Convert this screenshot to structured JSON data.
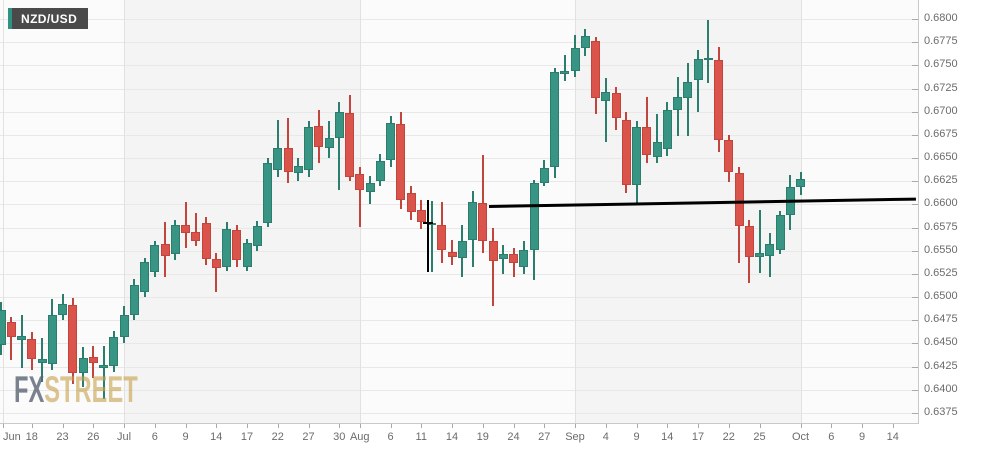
{
  "pair_label": "NZD/USD",
  "watermark": {
    "fx": "FX",
    "street": "STREET"
  },
  "colors": {
    "up": "#389583",
    "up_dark": "#2b7d6d",
    "down": "#db544b",
    "down_dark": "#c2453d",
    "grid": "#e8e8e8",
    "month_grid": "#e1e1e1",
    "band_plain": "#fbfbfb",
    "band_shaded": "#f4f4f4",
    "axis_text": "#6b6b6b",
    "trendline": "#000000",
    "badge_bg": "#4a4a4a",
    "badge_accent": "#2f9383",
    "watermark_fx": "#5b6573",
    "watermark_street": "#c9a250"
  },
  "y_axis": {
    "tick_labels": [
      "0.6800",
      "0.6775",
      "0.6750",
      "0.6725",
      "0.6700",
      "0.6675",
      "0.6650",
      "0.6625",
      "0.6600",
      "0.6575",
      "0.6550",
      "0.6525",
      "0.6500",
      "0.6475",
      "0.6450",
      "0.6425",
      "0.6400",
      "0.6375"
    ]
  },
  "x_axis": {
    "labels": [
      {
        "t": "Jun",
        "i": 0.2,
        "month": true,
        "align": "left"
      },
      {
        "t": "18",
        "i": 3
      },
      {
        "t": "23",
        "i": 6
      },
      {
        "t": "26",
        "i": 9
      },
      {
        "t": "Jul",
        "i": 12,
        "month": true
      },
      {
        "t": "6",
        "i": 15
      },
      {
        "t": "9",
        "i": 18
      },
      {
        "t": "14",
        "i": 21
      },
      {
        "t": "17",
        "i": 24
      },
      {
        "t": "22",
        "i": 27
      },
      {
        "t": "27",
        "i": 30
      },
      {
        "t": "30",
        "i": 33
      },
      {
        "t": "Aug",
        "i": 35,
        "month": true
      },
      {
        "t": "6",
        "i": 38
      },
      {
        "t": "11",
        "i": 41
      },
      {
        "t": "14",
        "i": 44
      },
      {
        "t": "19",
        "i": 47
      },
      {
        "t": "24",
        "i": 50
      },
      {
        "t": "27",
        "i": 53
      },
      {
        "t": "Sep",
        "i": 56,
        "month": true
      },
      {
        "t": "4",
        "i": 59
      },
      {
        "t": "9",
        "i": 62
      },
      {
        "t": "14",
        "i": 65
      },
      {
        "t": "17",
        "i": 68
      },
      {
        "t": "22",
        "i": 71
      },
      {
        "t": "25",
        "i": 74
      },
      {
        "t": "Oct",
        "i": 78,
        "month": true
      },
      {
        "t": "6",
        "i": 81
      },
      {
        "t": "9",
        "i": 84
      },
      {
        "t": "14",
        "i": 87
      }
    ]
  },
  "chart_data": {
    "type": "candlestick",
    "title": "NZD/USD",
    "ylim": [
      0.6375,
      0.68
    ],
    "y_tick_step": 0.0025,
    "grid": true,
    "candles": [
      {
        "d": "Jun 15",
        "o": 0.6448,
        "h": 0.6495,
        "l": 0.6438,
        "c": 0.6486
      },
      {
        "d": "Jun 16",
        "o": 0.6473,
        "h": 0.6479,
        "l": 0.6432,
        "c": 0.6457
      },
      {
        "d": "Jun 17",
        "o": 0.6454,
        "h": 0.6481,
        "l": 0.6424,
        "c": 0.6458
      },
      {
        "d": "Jun 18",
        "o": 0.6455,
        "h": 0.6462,
        "l": 0.6421,
        "c": 0.6433
      },
      {
        "d": "Jun 19",
        "o": 0.6429,
        "h": 0.6456,
        "l": 0.6408,
        "c": 0.6433
      },
      {
        "d": "Jun 22",
        "o": 0.6428,
        "h": 0.6498,
        "l": 0.6421,
        "c": 0.6481
      },
      {
        "d": "Jun 23",
        "o": 0.6481,
        "h": 0.6503,
        "l": 0.6475,
        "c": 0.6493
      },
      {
        "d": "Jun 24",
        "o": 0.6492,
        "h": 0.6499,
        "l": 0.6406,
        "c": 0.6418
      },
      {
        "d": "Jun 25",
        "o": 0.6418,
        "h": 0.6446,
        "l": 0.6403,
        "c": 0.6434
      },
      {
        "d": "Jun 26",
        "o": 0.6435,
        "h": 0.6447,
        "l": 0.6413,
        "c": 0.6429
      },
      {
        "d": "Jun 29",
        "o": 0.6424,
        "h": 0.6447,
        "l": 0.639,
        "c": 0.6427
      },
      {
        "d": "Jun 30",
        "o": 0.6426,
        "h": 0.6463,
        "l": 0.6419,
        "c": 0.6457
      },
      {
        "d": "Jul 1",
        "o": 0.6457,
        "h": 0.649,
        "l": 0.645,
        "c": 0.6481
      },
      {
        "d": "Jul 2",
        "o": 0.6481,
        "h": 0.652,
        "l": 0.6475,
        "c": 0.6513
      },
      {
        "d": "Jul 3",
        "o": 0.6505,
        "h": 0.6542,
        "l": 0.65,
        "c": 0.6538
      },
      {
        "d": "Jul 6",
        "o": 0.6527,
        "h": 0.656,
        "l": 0.6522,
        "c": 0.6556
      },
      {
        "d": "Jul 7",
        "o": 0.6557,
        "h": 0.6581,
        "l": 0.6522,
        "c": 0.6544
      },
      {
        "d": "Jul 8",
        "o": 0.6547,
        "h": 0.6583,
        "l": 0.654,
        "c": 0.6578
      },
      {
        "d": "Jul 9",
        "o": 0.6578,
        "h": 0.6603,
        "l": 0.6553,
        "c": 0.6569
      },
      {
        "d": "Jul 10",
        "o": 0.657,
        "h": 0.6591,
        "l": 0.6555,
        "c": 0.6561
      },
      {
        "d": "Jul 13",
        "o": 0.658,
        "h": 0.6586,
        "l": 0.6535,
        "c": 0.6541
      },
      {
        "d": "Jul 14",
        "o": 0.6541,
        "h": 0.6548,
        "l": 0.6506,
        "c": 0.6531
      },
      {
        "d": "Jul 15",
        "o": 0.6532,
        "h": 0.6581,
        "l": 0.6528,
        "c": 0.6574
      },
      {
        "d": "Jul 16",
        "o": 0.6572,
        "h": 0.6578,
        "l": 0.6532,
        "c": 0.654
      },
      {
        "d": "Jul 17",
        "o": 0.6532,
        "h": 0.6563,
        "l": 0.6528,
        "c": 0.6558
      },
      {
        "d": "Jul 20",
        "o": 0.6555,
        "h": 0.6582,
        "l": 0.655,
        "c": 0.6577
      },
      {
        "d": "Jul 21",
        "o": 0.658,
        "h": 0.665,
        "l": 0.6576,
        "c": 0.6645
      },
      {
        "d": "Jul 22",
        "o": 0.6637,
        "h": 0.6691,
        "l": 0.663,
        "c": 0.6661
      },
      {
        "d": "Jul 23",
        "o": 0.6661,
        "h": 0.6693,
        "l": 0.6623,
        "c": 0.6635
      },
      {
        "d": "Jul 24",
        "o": 0.6634,
        "h": 0.665,
        "l": 0.6625,
        "c": 0.6641
      },
      {
        "d": "Jul 27",
        "o": 0.6637,
        "h": 0.669,
        "l": 0.663,
        "c": 0.6683
      },
      {
        "d": "Jul 28",
        "o": 0.6685,
        "h": 0.6702,
        "l": 0.6645,
        "c": 0.6662
      },
      {
        "d": "Jul 29",
        "o": 0.6661,
        "h": 0.669,
        "l": 0.665,
        "c": 0.6672
      },
      {
        "d": "Jul 30",
        "o": 0.6672,
        "h": 0.671,
        "l": 0.6616,
        "c": 0.67
      },
      {
        "d": "Jul 31",
        "o": 0.6699,
        "h": 0.6718,
        "l": 0.6625,
        "c": 0.663
      },
      {
        "d": "Aug 3",
        "o": 0.6633,
        "h": 0.664,
        "l": 0.6576,
        "c": 0.6616
      },
      {
        "d": "Aug 4",
        "o": 0.6613,
        "h": 0.6631,
        "l": 0.66,
        "c": 0.6623
      },
      {
        "d": "Aug 5",
        "o": 0.6625,
        "h": 0.6654,
        "l": 0.662,
        "c": 0.6647
      },
      {
        "d": "Aug 6",
        "o": 0.6648,
        "h": 0.6695,
        "l": 0.664,
        "c": 0.6688
      },
      {
        "d": "Aug 7",
        "o": 0.6687,
        "h": 0.67,
        "l": 0.6595,
        "c": 0.6605
      },
      {
        "d": "Aug 10",
        "o": 0.6612,
        "h": 0.662,
        "l": 0.6583,
        "c": 0.6592
      },
      {
        "d": "Aug 11",
        "o": 0.6594,
        "h": 0.6605,
        "l": 0.6574,
        "c": 0.6581
      },
      {
        "d": "Aug 12",
        "o": 0.6579,
        "h": 0.6604,
        "l": 0.6527,
        "c": 0.658
      },
      {
        "d": "Aug 13",
        "o": 0.6578,
        "h": 0.6603,
        "l": 0.6537,
        "c": 0.6551
      },
      {
        "d": "Aug 14",
        "o": 0.6549,
        "h": 0.6562,
        "l": 0.6535,
        "c": 0.6543
      },
      {
        "d": "Aug 17",
        "o": 0.6542,
        "h": 0.6578,
        "l": 0.6522,
        "c": 0.656
      },
      {
        "d": "Aug 18",
        "o": 0.6562,
        "h": 0.6614,
        "l": 0.6533,
        "c": 0.6603
      },
      {
        "d": "Aug 19",
        "o": 0.6602,
        "h": 0.6653,
        "l": 0.6548,
        "c": 0.6561
      },
      {
        "d": "Aug 20",
        "o": 0.656,
        "h": 0.6575,
        "l": 0.649,
        "c": 0.6539
      },
      {
        "d": "Aug 21",
        "o": 0.6541,
        "h": 0.6556,
        "l": 0.6525,
        "c": 0.6546
      },
      {
        "d": "Aug 24",
        "o": 0.6546,
        "h": 0.6553,
        "l": 0.6522,
        "c": 0.6537
      },
      {
        "d": "Aug 25",
        "o": 0.6532,
        "h": 0.656,
        "l": 0.6525,
        "c": 0.6551
      },
      {
        "d": "Aug 26",
        "o": 0.6551,
        "h": 0.6626,
        "l": 0.6518,
        "c": 0.6623
      },
      {
        "d": "Aug 27",
        "o": 0.6623,
        "h": 0.6648,
        "l": 0.662,
        "c": 0.6639
      },
      {
        "d": "Aug 28",
        "o": 0.664,
        "h": 0.6747,
        "l": 0.6628,
        "c": 0.6743
      },
      {
        "d": "Aug 31",
        "o": 0.6741,
        "h": 0.6761,
        "l": 0.6733,
        "c": 0.6744
      },
      {
        "d": "Sep 1",
        "o": 0.6744,
        "h": 0.6783,
        "l": 0.6737,
        "c": 0.6769
      },
      {
        "d": "Sep 2",
        "o": 0.6769,
        "h": 0.6789,
        "l": 0.676,
        "c": 0.6782
      },
      {
        "d": "Sep 3",
        "o": 0.6776,
        "h": 0.6781,
        "l": 0.6697,
        "c": 0.6715
      },
      {
        "d": "Sep 4",
        "o": 0.6712,
        "h": 0.6736,
        "l": 0.6667,
        "c": 0.6721
      },
      {
        "d": "Sep 7",
        "o": 0.672,
        "h": 0.6727,
        "l": 0.668,
        "c": 0.6693
      },
      {
        "d": "Sep 8",
        "o": 0.6691,
        "h": 0.67,
        "l": 0.6612,
        "c": 0.6621
      },
      {
        "d": "Sep 9",
        "o": 0.6621,
        "h": 0.669,
        "l": 0.6599,
        "c": 0.6683
      },
      {
        "d": "Sep 10",
        "o": 0.6684,
        "h": 0.6716,
        "l": 0.6645,
        "c": 0.6653
      },
      {
        "d": "Sep 11",
        "o": 0.6651,
        "h": 0.6698,
        "l": 0.6645,
        "c": 0.6667
      },
      {
        "d": "Sep 14",
        "o": 0.666,
        "h": 0.671,
        "l": 0.6652,
        "c": 0.6702
      },
      {
        "d": "Sep 15",
        "o": 0.6702,
        "h": 0.6737,
        "l": 0.6674,
        "c": 0.6716
      },
      {
        "d": "Sep 16",
        "o": 0.6715,
        "h": 0.6752,
        "l": 0.6674,
        "c": 0.6732
      },
      {
        "d": "Sep 17",
        "o": 0.6734,
        "h": 0.6767,
        "l": 0.67,
        "c": 0.6757
      },
      {
        "d": "Sep 18",
        "o": 0.6756,
        "h": 0.6799,
        "l": 0.6731,
        "c": 0.6758
      },
      {
        "d": "Sep 21",
        "o": 0.6756,
        "h": 0.677,
        "l": 0.6656,
        "c": 0.667
      },
      {
        "d": "Sep 22",
        "o": 0.6669,
        "h": 0.6675,
        "l": 0.6624,
        "c": 0.6635
      },
      {
        "d": "Sep 23",
        "o": 0.6634,
        "h": 0.664,
        "l": 0.6537,
        "c": 0.6577
      },
      {
        "d": "Sep 24",
        "o": 0.6577,
        "h": 0.6583,
        "l": 0.6515,
        "c": 0.6543
      },
      {
        "d": "Sep 25",
        "o": 0.6543,
        "h": 0.6594,
        "l": 0.6526,
        "c": 0.6548
      },
      {
        "d": "Sep 28",
        "o": 0.6544,
        "h": 0.6569,
        "l": 0.6522,
        "c": 0.6557
      },
      {
        "d": "Sep 29",
        "o": 0.6551,
        "h": 0.6593,
        "l": 0.6546,
        "c": 0.6589
      },
      {
        "d": "Sep 30",
        "o": 0.6589,
        "h": 0.6632,
        "l": 0.6572,
        "c": 0.6619
      },
      {
        "d": "Oct 1",
        "o": 0.6619,
        "h": 0.6635,
        "l": 0.661,
        "c": 0.6627
      }
    ],
    "annotations": {
      "support_trendline": {
        "from_index": 47.6,
        "from_price": 0.6598,
        "to_index": 89.3,
        "to_price": 0.6606,
        "color": "#000000"
      },
      "vertical_line": {
        "at_index": 41.66,
        "top_price": 0.6605,
        "bottom_price": 0.6527,
        "cross_price": 0.658,
        "color": "#000000"
      }
    }
  }
}
